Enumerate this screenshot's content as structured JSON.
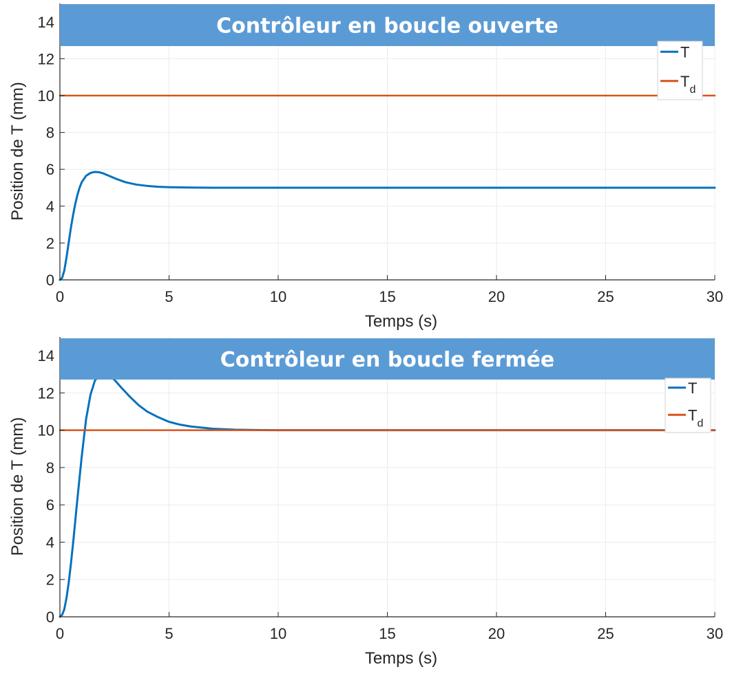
{
  "colors": {
    "banner": "#5b9bd5",
    "T": "#0072bd",
    "Td": "#d95319",
    "grid": "#ebebeb",
    "axis": "#262626"
  },
  "chart_data": [
    {
      "type": "line",
      "title": "Contrôleur en boucle ouverte",
      "xlabel": "Temps (s)",
      "ylabel": "Position de T (mm)",
      "xlim": [
        0,
        30
      ],
      "ylim": [
        0,
        15
      ],
      "xticks": [
        "0",
        "5",
        "10",
        "15",
        "20",
        "25",
        "30"
      ],
      "yticks": [
        "0",
        "2",
        "4",
        "6",
        "8",
        "10",
        "12",
        "14"
      ],
      "grid": true,
      "legend": {
        "placement": "top-right",
        "entries": [
          {
            "label": "T",
            "subscript": ""
          },
          {
            "label": "T",
            "subscript": "d"
          }
        ]
      },
      "series": [
        {
          "name": "T",
          "x": [
            0,
            0.1,
            0.2,
            0.3,
            0.4,
            0.5,
            0.6,
            0.7,
            0.8,
            0.9,
            1.0,
            1.2,
            1.4,
            1.6,
            1.8,
            2.0,
            2.3,
            2.6,
            3.0,
            3.5,
            4.0,
            4.5,
            5.0,
            6.0,
            7.0,
            8.0,
            10.0,
            15.0,
            20.0,
            25.0,
            30.0
          ],
          "values": [
            0,
            0.1,
            0.5,
            1.2,
            2.0,
            2.8,
            3.5,
            4.1,
            4.6,
            5.0,
            5.3,
            5.65,
            5.8,
            5.86,
            5.84,
            5.77,
            5.62,
            5.47,
            5.3,
            5.17,
            5.1,
            5.05,
            5.03,
            5.01,
            5.0,
            5.0,
            5.0,
            5.0,
            5.0,
            5.0,
            5.0
          ]
        },
        {
          "name": "T",
          "x": [
            0,
            30
          ],
          "values": [
            10,
            10
          ]
        }
      ]
    },
    {
      "type": "line",
      "title": "Contrôleur en boucle fermée",
      "xlabel": "Temps (s)",
      "ylabel": "Position de T (mm)",
      "xlim": [
        0,
        30
      ],
      "ylim": [
        0,
        15
      ],
      "xticks": [
        "0",
        "5",
        "10",
        "15",
        "20",
        "25",
        "30"
      ],
      "yticks": [
        "0",
        "2",
        "4",
        "6",
        "8",
        "10",
        "12",
        "14"
      ],
      "grid": true,
      "legend": {
        "placement": "top-right",
        "entries": [
          {
            "label": "T",
            "subscript": ""
          },
          {
            "label": "T",
            "subscript": "d"
          }
        ]
      },
      "series": [
        {
          "name": "T",
          "x": [
            0,
            0.1,
            0.2,
            0.3,
            0.4,
            0.5,
            0.6,
            0.8,
            1.0,
            1.2,
            1.4,
            1.6,
            1.8,
            2.0,
            2.2,
            2.5,
            2.8,
            3.2,
            3.6,
            4.0,
            4.5,
            5.0,
            5.5,
            6.0,
            7.0,
            8.0,
            9.0,
            10.0,
            15.0,
            20.0,
            25.0,
            30.0
          ],
          "values": [
            0,
            0.1,
            0.4,
            1.0,
            1.8,
            2.8,
            3.9,
            6.3,
            8.6,
            10.6,
            11.9,
            12.65,
            12.97,
            13.05,
            12.97,
            12.7,
            12.3,
            11.8,
            11.35,
            11.0,
            10.7,
            10.45,
            10.3,
            10.2,
            10.08,
            10.03,
            10.01,
            10.0,
            10.0,
            10.0,
            10.0,
            10.0
          ]
        },
        {
          "name": "T",
          "x": [
            0,
            30
          ],
          "values": [
            10,
            10
          ]
        }
      ]
    }
  ]
}
